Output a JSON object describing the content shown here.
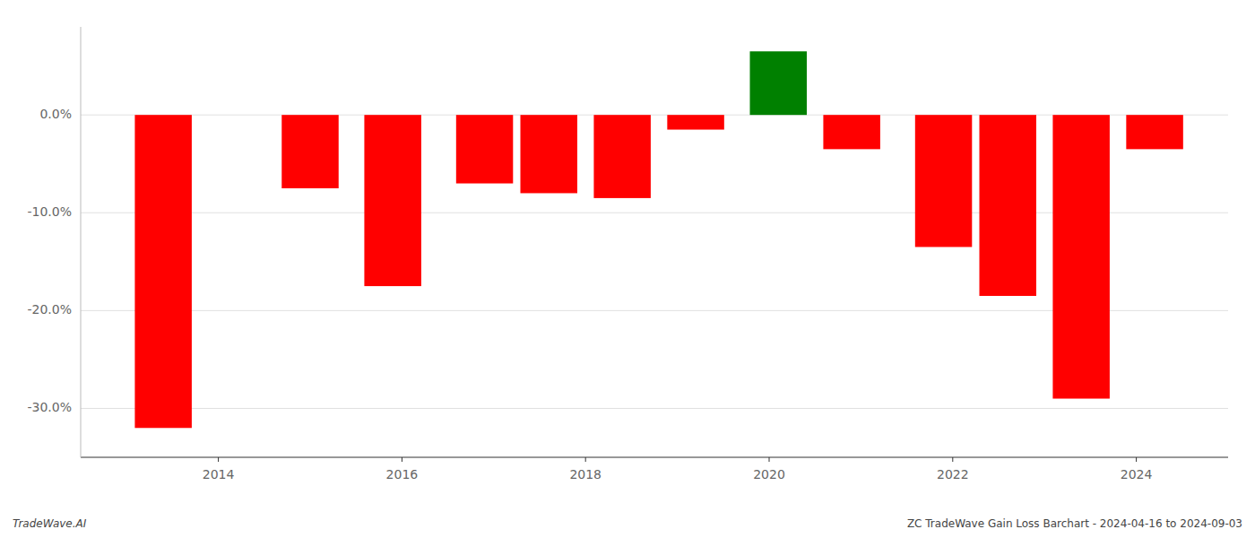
{
  "chart_data": {
    "type": "bar",
    "x": [
      2013.4,
      2015.0,
      2015.9,
      2016.9,
      2017.6,
      2018.4,
      2019.2,
      2020.1,
      2020.9,
      2021.9,
      2022.6,
      2023.4,
      2024.2
    ],
    "values": [
      -32.0,
      -7.5,
      -17.5,
      -7.0,
      -8.0,
      -8.5,
      -1.5,
      6.5,
      -3.5,
      -13.5,
      -18.5,
      -29.0,
      -3.5
    ],
    "colors": [
      "#ff0000",
      "#ff0000",
      "#ff0000",
      "#ff0000",
      "#ff0000",
      "#ff0000",
      "#ff0000",
      "#008000",
      "#ff0000",
      "#ff0000",
      "#ff0000",
      "#ff0000",
      "#ff0000"
    ],
    "xlim": [
      2012.5,
      2025.0
    ],
    "ylim": [
      -35,
      9
    ],
    "xticks": [
      2014,
      2016,
      2018,
      2020,
      2022,
      2024
    ],
    "yticks": [
      {
        "value": 0.0,
        "label": "0.0%"
      },
      {
        "value": -10.0,
        "label": "-10.0%"
      },
      {
        "value": -20.0,
        "label": "-20.0%"
      },
      {
        "value": -30.0,
        "label": "-30.0%"
      }
    ],
    "grid": true,
    "annotations": [
      "TradeWave.AI",
      "ZC TradeWave Gain Loss Barchart - 2024-04-16 to 2024-09-03"
    ]
  }
}
